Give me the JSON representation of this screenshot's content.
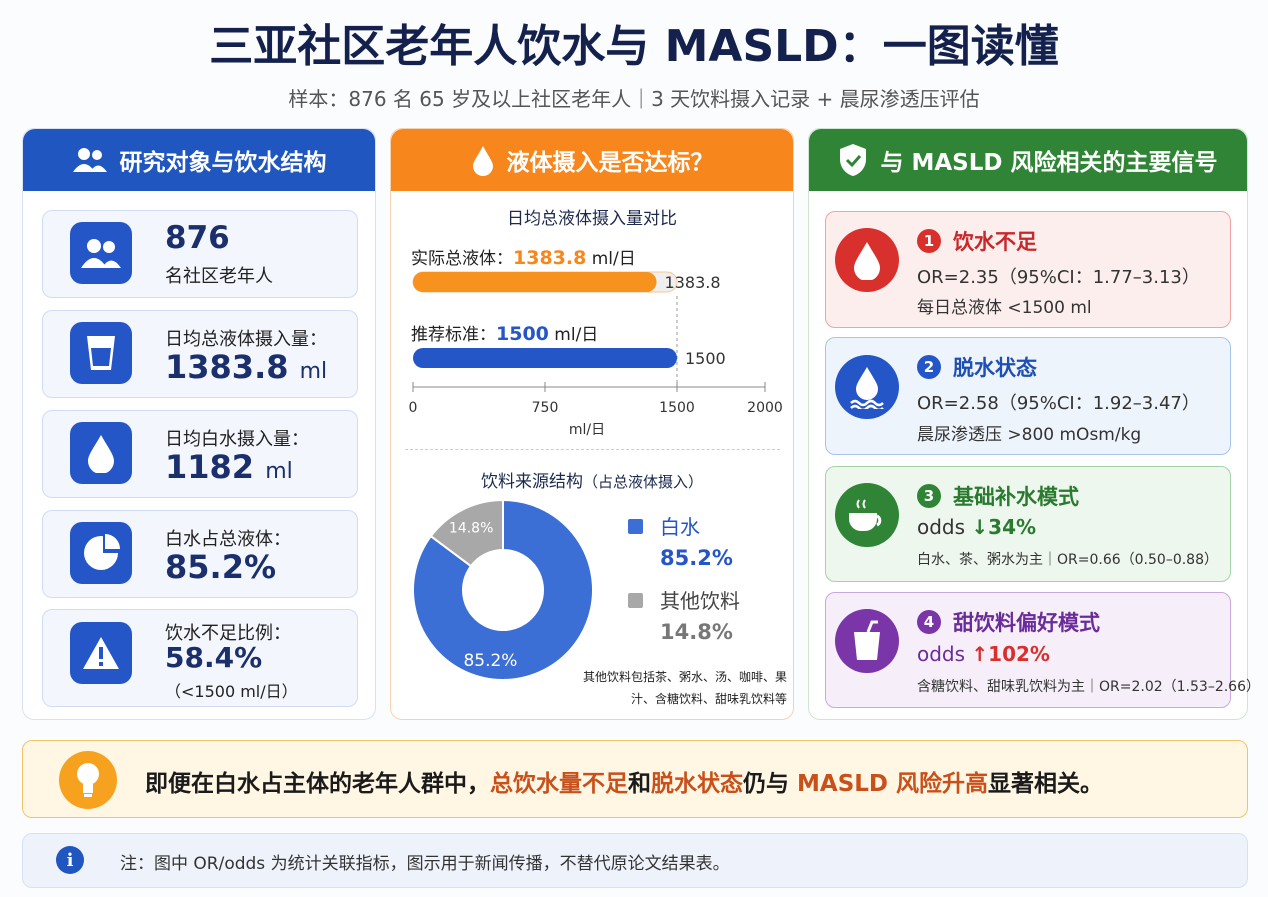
{
  "header": {
    "title": "三亚社区老年人饮水与 MASLD：一图读懂",
    "subtitle": "样本：876 名 65 岁及以上社区老年人｜3 天饮料摄入记录 + 晨尿渗透压评估"
  },
  "panels": {
    "left_title": "研究对象与饮水结构",
    "middle_title": "液体摄入是否达标？",
    "right_title": "与 MASLD 风险相关的主要信号"
  },
  "stats": [
    {
      "value": "876",
      "label": "名社区老年人"
    },
    {
      "label": "日均总液体摄入量：",
      "value": "1383.8",
      "unit": "ml"
    },
    {
      "label": "日均白水摄入量：",
      "value": "1182",
      "unit": "ml"
    },
    {
      "label": "白水占总液体：",
      "value": "85.2%"
    },
    {
      "label": "饮水不足比例：",
      "value": "58.4%",
      "note": "（<1500 ml/日）"
    }
  ],
  "chart_data": [
    {
      "type": "bar",
      "title": "日均总液体摄入量对比",
      "categories": [
        "实际总液体：",
        "推荐标准："
      ],
      "values": [
        1383.8,
        1500
      ],
      "value_unit": "ml/日",
      "colors": [
        "#f7921e",
        "#2456c8"
      ],
      "xlim": [
        0,
        2000
      ],
      "xticks": [
        0,
        750,
        1500,
        2000
      ],
      "xlabel": "ml/日"
    },
    {
      "type": "pie",
      "title": "饮料来源结构",
      "subtitle": "（占总液体摄入）",
      "categories": [
        "白水",
        "其他饮料"
      ],
      "values": [
        85.2,
        14.8
      ],
      "value_labels": [
        "85.2%",
        "14.8%"
      ],
      "colors": [
        "#3b6fd6",
        "#a8a8a8"
      ],
      "note": "其他饮料包括茶、粥水、汤、咖啡、果汁、含糖饮料、甜味乳饮料等"
    }
  ],
  "signals": [
    {
      "number": "1",
      "title": "饮水不足",
      "line1": "OR=2.35（95%CI：1.77–3.13）",
      "line2": "每日总液体 <1500 ml"
    },
    {
      "number": "2",
      "title": "脱水状态",
      "line1": "OR=2.58（95%CI：1.92–3.47）",
      "line2": "晨尿渗透压 >800 mOsm/kg"
    },
    {
      "number": "3",
      "title": "基础补水模式",
      "odds_label": "odds",
      "odds_value": "↓34%",
      "line2": "白水、茶、粥水为主｜OR=0.66（0.50–0.88）"
    },
    {
      "number": "4",
      "title": "甜饮料偏好模式",
      "odds_label": "odds",
      "odds_value": "↑102%",
      "line2": "含糖饮料、甜味乳饮料为主｜OR=2.02（1.53–2.66）"
    }
  ],
  "summary": [
    "即便在白水占主体的老年人群中，",
    "总饮水量不足",
    "和",
    "脱水状态",
    "仍与 ",
    "MASLD 风险升高",
    "显著相关。"
  ],
  "footnote": "注：图中 OR/odds 为统计关联指标，图示用于新闻传播，不替代原论文结果表。"
}
